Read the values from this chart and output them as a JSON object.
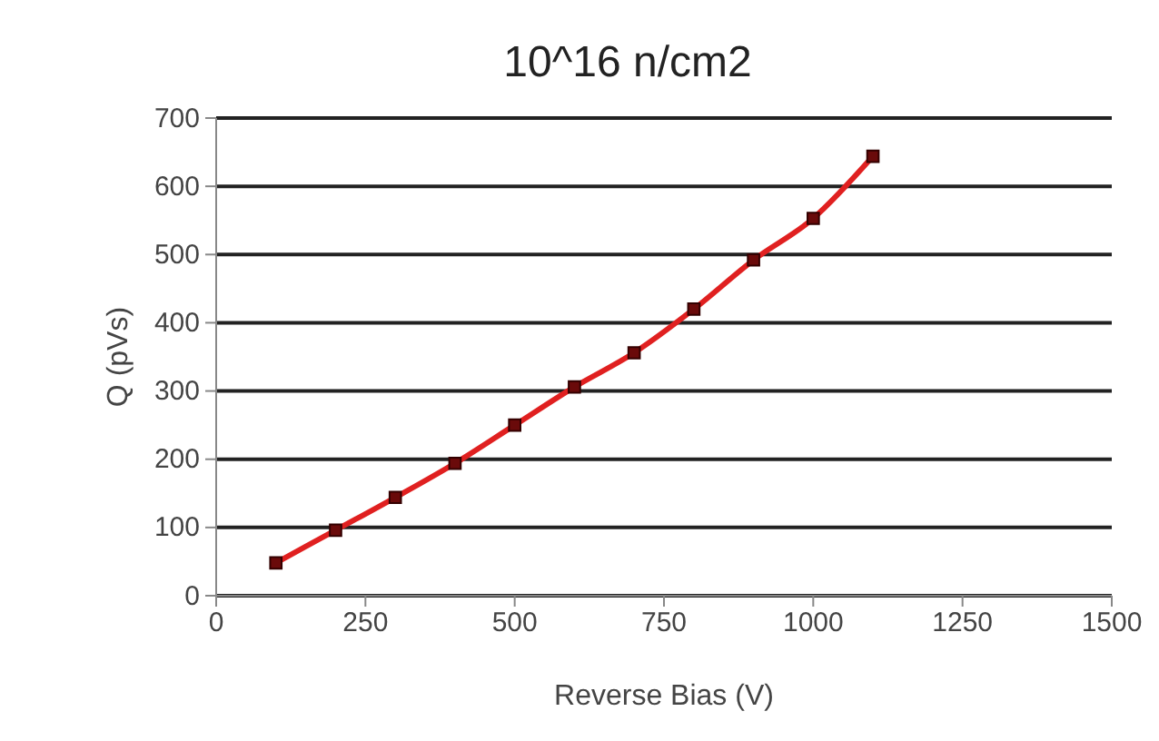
{
  "chart_data": {
    "type": "line",
    "title": "10^16 n/cm2",
    "xlabel": "Reverse Bias (V)",
    "ylabel": "Q (pVs)",
    "x": [
      100,
      200,
      300,
      400,
      500,
      600,
      700,
      800,
      900,
      1000,
      1100
    ],
    "series": [
      {
        "color": "#e02020",
        "values": [
          48,
          96,
          144,
          194,
          250,
          306,
          356,
          420,
          492,
          553,
          644
        ]
      }
    ],
    "xlim": [
      0,
      1500
    ],
    "xticks": [
      0,
      250,
      500,
      750,
      1000,
      1250,
      1500
    ],
    "ylim": [
      0,
      700
    ],
    "yticks": [
      0,
      100,
      200,
      300,
      400,
      500,
      600,
      700
    ],
    "grid": "y",
    "marker": "square",
    "line_style": "solid"
  }
}
